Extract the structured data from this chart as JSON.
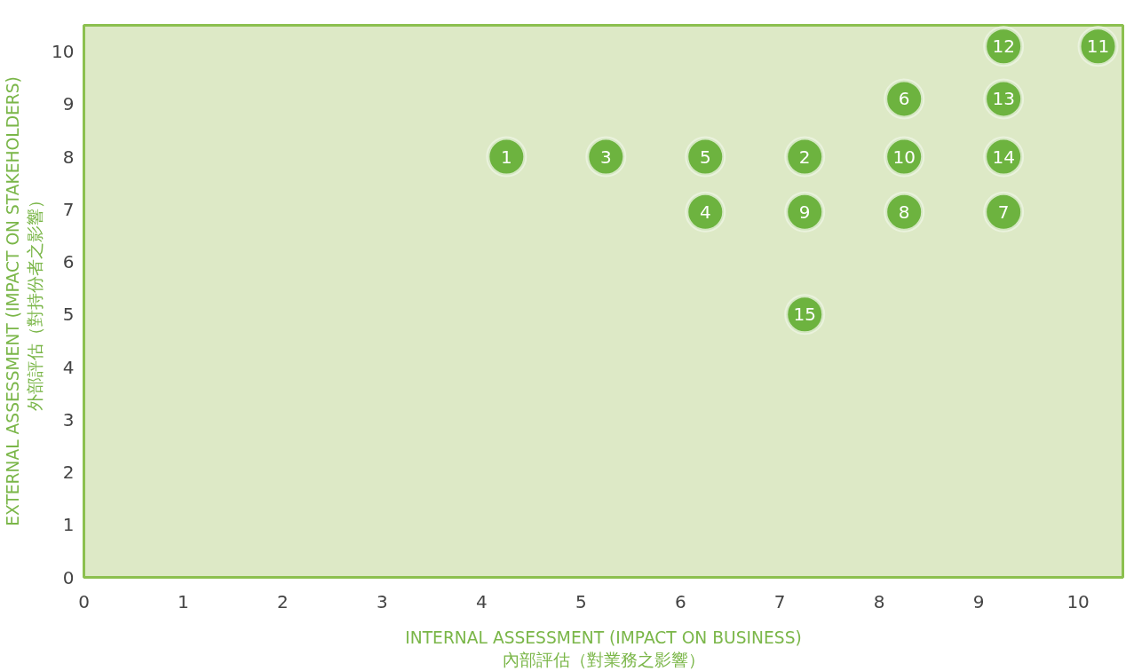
{
  "chart_data": {
    "type": "scatter",
    "xlabel": "INTERNAL ASSESSMENT (IMPACT ON BUSINESS)\n內部評估（對業務之影響）",
    "ylabel": "EXTERNAL ASSESSMENT (IMPACT ON STAKEHOLDERS)\n外部評估（對持份者之影響）",
    "xlim": [
      0,
      10.45
    ],
    "ylim": [
      0,
      10.5
    ],
    "xticks": [
      0,
      1,
      2,
      3,
      4,
      5,
      6,
      7,
      8,
      9,
      10
    ],
    "yticks": [
      0,
      1,
      2,
      3,
      4,
      5,
      6,
      7,
      8,
      9,
      10
    ],
    "grid": false,
    "marker": "circle",
    "series": [
      {
        "color": "#6db33f",
        "x": [
          4.25,
          7.25,
          5.25,
          6.25,
          6.25,
          8.25,
          9.25,
          8.25,
          7.25,
          8.25,
          10.2,
          9.25,
          9.25,
          9.25,
          7.25
        ],
        "values": [
          8,
          8,
          8,
          6.95,
          8,
          9.1,
          6.95,
          6.95,
          6.95,
          8,
          10.1,
          10.1,
          9.1,
          8,
          5
        ]
      }
    ],
    "annotations": [
      {
        "text": "1",
        "x": 4.25,
        "y": 8
      },
      {
        "text": "2",
        "x": 7.25,
        "y": 8
      },
      {
        "text": "3",
        "x": 5.25,
        "y": 8
      },
      {
        "text": "4",
        "x": 6.25,
        "y": 6.95
      },
      {
        "text": "5",
        "x": 6.25,
        "y": 8
      },
      {
        "text": "6",
        "x": 8.25,
        "y": 9.1
      },
      {
        "text": "7",
        "x": 9.25,
        "y": 6.95
      },
      {
        "text": "8",
        "x": 8.25,
        "y": 6.95
      },
      {
        "text": "9",
        "x": 7.25,
        "y": 6.95
      },
      {
        "text": "10",
        "x": 8.25,
        "y": 8
      },
      {
        "text": "11",
        "x": 10.2,
        "y": 10.1
      },
      {
        "text": "12",
        "x": 9.25,
        "y": 10.1
      },
      {
        "text": "13",
        "x": 9.25,
        "y": 9.1
      },
      {
        "text": "14",
        "x": 9.25,
        "y": 8
      },
      {
        "text": "15",
        "x": 7.25,
        "y": 5
      }
    ]
  }
}
